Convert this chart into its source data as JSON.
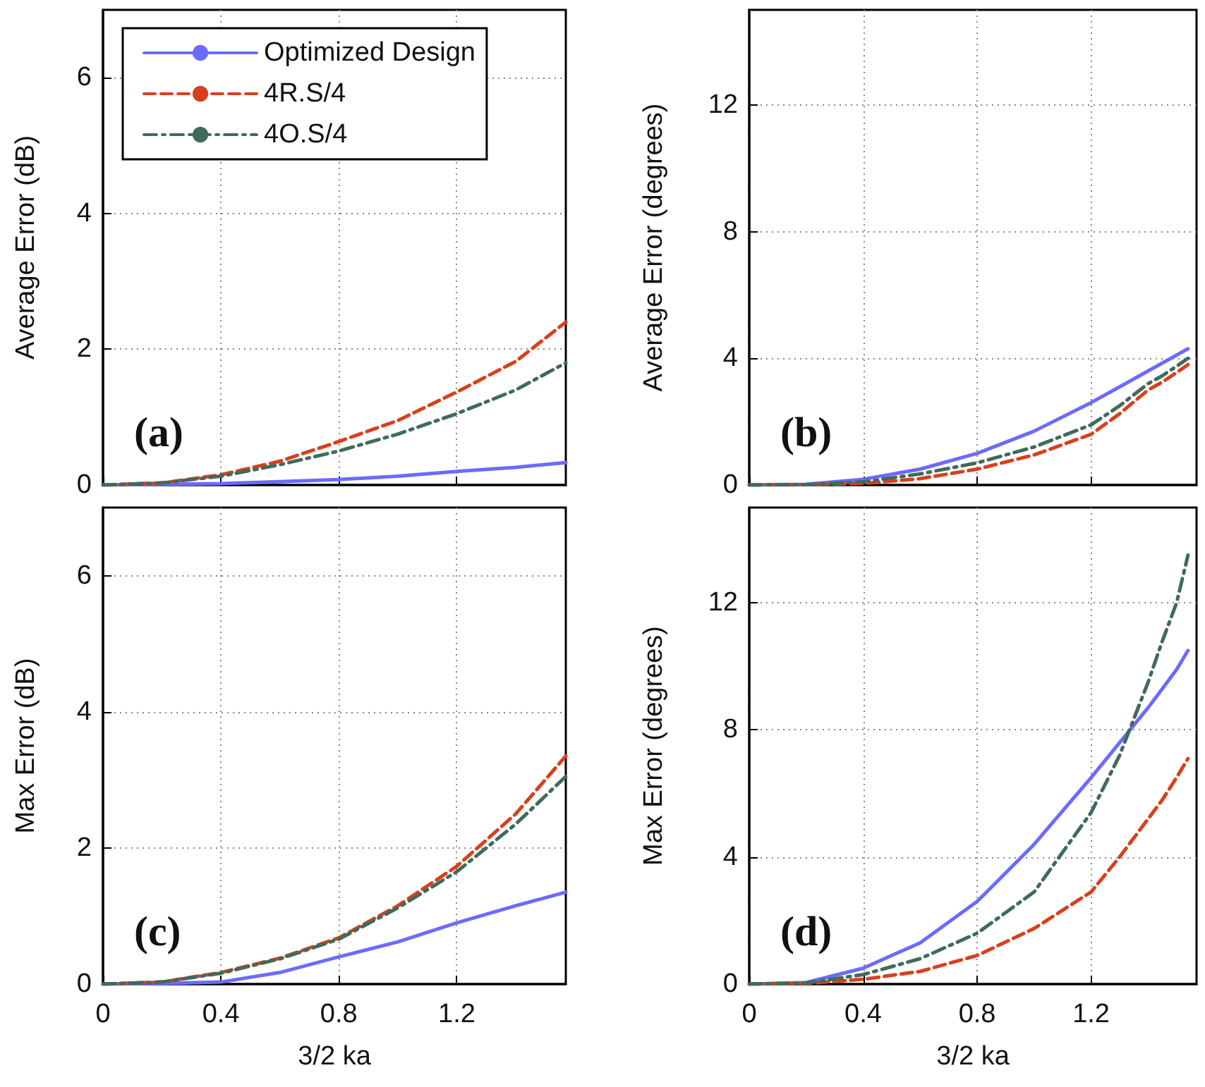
{
  "chart_data": [
    {
      "type": "line",
      "ylabel": "Average Error (dB)",
      "annotations": [
        "(a)"
      ],
      "x": [
        0,
        0.2,
        0.4,
        0.6,
        0.8,
        1.0,
        1.2,
        1.4,
        1.57
      ],
      "xlim": [
        0,
        1.57
      ],
      "xticks": [
        0,
        0.4,
        0.8,
        1.2
      ],
      "ylim": [
        0,
        7
      ],
      "yticks": [
        0,
        2,
        4,
        6
      ],
      "grid": true,
      "legend": "top left",
      "tick_labels": "y",
      "series": [
        {
          "name": "Optimized Design",
          "color": "#6b6bff",
          "line_style": "solid",
          "values": [
            0,
            0.01,
            0.02,
            0.05,
            0.08,
            0.13,
            0.2,
            0.26,
            0.33
          ]
        },
        {
          "name": "4R.S/4",
          "color": "#d8401c",
          "line_style": "dashed",
          "values": [
            0,
            0.03,
            0.15,
            0.35,
            0.64,
            0.95,
            1.37,
            1.82,
            2.4
          ]
        },
        {
          "name": "4O.S/4",
          "color": "#3f6b5c",
          "line_style": "dashdot",
          "values": [
            0,
            0.03,
            0.13,
            0.3,
            0.5,
            0.75,
            1.05,
            1.4,
            1.8
          ]
        }
      ]
    },
    {
      "type": "line",
      "ylabel": "Average Error (degrees)",
      "annotations": [
        "(b)"
      ],
      "x": [
        0,
        0.2,
        0.4,
        0.6,
        0.8,
        1.0,
        1.2,
        1.3,
        1.4,
        1.45,
        1.5,
        1.54
      ],
      "xlim": [
        0,
        1.57
      ],
      "xticks": [
        0,
        0.4,
        0.8,
        1.2
      ],
      "ylim": [
        0,
        15
      ],
      "yticks": [
        0,
        4,
        8,
        12
      ],
      "grid": true,
      "tick_labels": "y",
      "series": [
        {
          "color": "#6b6bff",
          "line_style": "solid",
          "values": [
            0,
            0.02,
            0.18,
            0.5,
            1.0,
            1.7,
            2.6,
            3.1,
            3.6,
            3.85,
            4.1,
            4.3
          ]
        },
        {
          "color": "#d8401c",
          "line_style": "dashed",
          "values": [
            0,
            0.01,
            0.05,
            0.2,
            0.5,
            0.95,
            1.6,
            2.25,
            3.0,
            3.25,
            3.55,
            3.8
          ]
        },
        {
          "color": "#3f6b5c",
          "line_style": "dashdot",
          "values": [
            0,
            0.01,
            0.1,
            0.35,
            0.7,
            1.2,
            1.9,
            2.5,
            3.2,
            3.45,
            3.75,
            4.0
          ]
        }
      ]
    },
    {
      "type": "line",
      "xlabel": "3/2 ka",
      "ylabel": "Max Error (dB)",
      "annotations": [
        "(c)"
      ],
      "x": [
        0,
        0.2,
        0.4,
        0.6,
        0.8,
        1.0,
        1.2,
        1.4,
        1.57
      ],
      "xlim": [
        0,
        1.57
      ],
      "xticks": [
        0,
        0.4,
        0.8,
        1.2
      ],
      "ylim": [
        0,
        7
      ],
      "yticks": [
        0,
        2,
        4,
        6
      ],
      "grid": true,
      "series": [
        {
          "color": "#6b6bff",
          "line_style": "solid",
          "values": [
            0,
            0.01,
            0.03,
            0.17,
            0.4,
            0.62,
            0.9,
            1.15,
            1.35
          ]
        },
        {
          "color": "#d8401c",
          "line_style": "dashed",
          "values": [
            0,
            0.03,
            0.17,
            0.38,
            0.68,
            1.15,
            1.73,
            2.5,
            3.35
          ]
        },
        {
          "color": "#3f6b5c",
          "line_style": "dashdot",
          "values": [
            0,
            0.03,
            0.16,
            0.37,
            0.66,
            1.12,
            1.65,
            2.35,
            3.05
          ]
        }
      ]
    },
    {
      "type": "line",
      "xlabel": "3/2 ka",
      "ylabel": "Max Error (degrees)",
      "annotations": [
        "(d)"
      ],
      "x": [
        0,
        0.2,
        0.4,
        0.6,
        0.8,
        1.0,
        1.2,
        1.3,
        1.4,
        1.45,
        1.5,
        1.54
      ],
      "xlim": [
        0,
        1.57
      ],
      "xticks": [
        0,
        0.4,
        0.8,
        1.2
      ],
      "ylim": [
        0,
        15
      ],
      "yticks": [
        0,
        4,
        8,
        12
      ],
      "grid": true,
      "series": [
        {
          "color": "#6b6bff",
          "line_style": "solid",
          "values": [
            0,
            0.05,
            0.5,
            1.3,
            2.6,
            4.4,
            6.5,
            7.6,
            8.7,
            9.3,
            9.9,
            10.5
          ]
        },
        {
          "color": "#d8401c",
          "line_style": "dashed",
          "values": [
            0,
            0.02,
            0.15,
            0.4,
            0.9,
            1.75,
            2.9,
            4.0,
            5.2,
            5.8,
            6.5,
            7.1
          ]
        },
        {
          "color": "#3f6b5c",
          "line_style": "dashdot",
          "values": [
            0,
            0.03,
            0.3,
            0.8,
            1.6,
            2.9,
            5.4,
            7.2,
            9.5,
            10.8,
            12,
            13.5
          ]
        }
      ]
    }
  ]
}
